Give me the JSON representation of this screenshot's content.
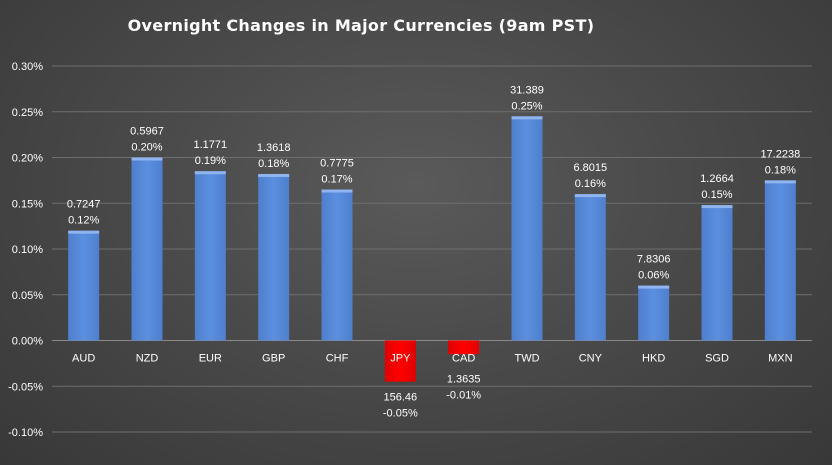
{
  "chart_data": {
    "type": "bar",
    "title": "Overnight Changes in Major Currencies (9am PST)",
    "xlabel": "",
    "ylabel": "",
    "ylim": [
      -0.001,
      0.003
    ],
    "y_ticks": [
      "0.30%",
      "0.25%",
      "0.20%",
      "0.15%",
      "0.10%",
      "0.05%",
      "0.00%",
      "-0.05%",
      "-0.10%"
    ],
    "y_tick_values": [
      0.003,
      0.0025,
      0.002,
      0.0015,
      0.001,
      0.0005,
      0,
      -0.0005,
      -0.001
    ],
    "grid": true,
    "legend": "none",
    "colors": {
      "positive": "#5b8fe0",
      "negative": "#ff0000"
    },
    "categories": [
      "AUD",
      "NZD",
      "EUR",
      "GBP",
      "CHF",
      "JPY",
      "CAD",
      "TWD",
      "CNY",
      "HKD",
      "SGD",
      "MXN"
    ],
    "values": [
      0.0012,
      0.002,
      0.00185,
      0.00182,
      0.00165,
      -0.00045,
      -0.00015,
      0.00245,
      0.0016,
      0.0006,
      0.00148,
      0.00175
    ],
    "rates": [
      "0.7247",
      "0.5967",
      "1.1771",
      "1.3618",
      "0.7775",
      "156.46",
      "1.3635",
      "31.389",
      "6.8015",
      "7.8306",
      "1.2664",
      "17.2238"
    ],
    "pct_labels": [
      "0.12%",
      "0.20%",
      "0.19%",
      "0.18%",
      "0.17%",
      "-0.05%",
      "-0.01%",
      "0.25%",
      "0.16%",
      "0.06%",
      "0.15%",
      "0.18%"
    ]
  }
}
